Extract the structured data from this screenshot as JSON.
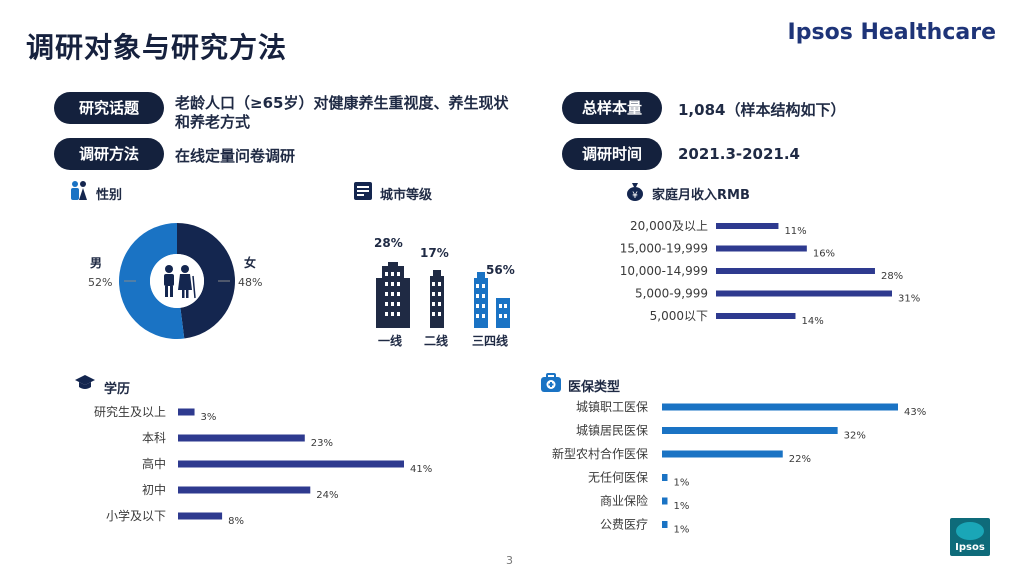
{
  "header": {
    "title": "调研对象与研究方法",
    "brand": "Ipsos Healthcare"
  },
  "info": [
    {
      "label": "研究话题",
      "value_line1": "老龄人口（≥65岁）对健康养生重视度、养生现状",
      "value_line2": "和养老方式"
    },
    {
      "label": "调研方法",
      "value": "在线定量问卷调研"
    },
    {
      "label": "总样本量",
      "value": "1,084（样本结构如下）"
    },
    {
      "label": "调研时间",
      "value": "2021.3-2021.4"
    }
  ],
  "sections": {
    "gender": "性别",
    "city": "城市等级",
    "income": "家庭月收入RMB",
    "education": "学历",
    "insurance": "医保类型"
  },
  "gender": {
    "male_label": "男",
    "male_pct": "52%",
    "male_value": 52,
    "female_label": "女",
    "female_pct": "48%",
    "female_value": 48,
    "colors": {
      "male": "#1a73c4",
      "female": "#14264f"
    }
  },
  "city": {
    "tiers": [
      {
        "label": "一线",
        "pct": "28%",
        "value": 28
      },
      {
        "label": "二线",
        "pct": "17%",
        "value": 17
      },
      {
        "label": "三四线",
        "pct": "56%",
        "value": 56
      }
    ]
  },
  "chart_data": [
    {
      "type": "bar",
      "orientation": "horizontal",
      "title": "家庭月收入RMB",
      "categories": [
        "20,000及以上",
        "15,000-19,999",
        "10,000-14,999",
        "5,000-9,999",
        "5,000以下"
      ],
      "values": [
        11,
        16,
        28,
        31,
        14
      ],
      "labels": [
        "11%",
        "16%",
        "28%",
        "31%",
        "14%"
      ],
      "xlim": [
        0,
        31
      ],
      "color": "#2e3a8f"
    },
    {
      "type": "bar",
      "orientation": "horizontal",
      "title": "学历",
      "categories": [
        "研究生及以上",
        "本科",
        "高中",
        "初中",
        "小学及以下"
      ],
      "values": [
        3,
        23,
        41,
        24,
        8
      ],
      "labels": [
        "3%",
        "23%",
        "41%",
        "24%",
        "8%"
      ],
      "xlim": [
        0,
        41
      ],
      "color": "#2e3a8f"
    },
    {
      "type": "bar",
      "orientation": "horizontal",
      "title": "医保类型",
      "categories": [
        "城镇职工医保",
        "城镇居民医保",
        "新型农村合作医保",
        "无任何医保",
        "商业保险",
        "公费医疗"
      ],
      "values": [
        43,
        32,
        22,
        1,
        1,
        1
      ],
      "labels": [
        "43%",
        "32%",
        "22%",
        "1%",
        "1%",
        "1%"
      ],
      "xlim": [
        0,
        43
      ],
      "color": "#1a73c4"
    }
  ],
  "footer": {
    "page": "3",
    "logo_text": "Ipsos"
  }
}
